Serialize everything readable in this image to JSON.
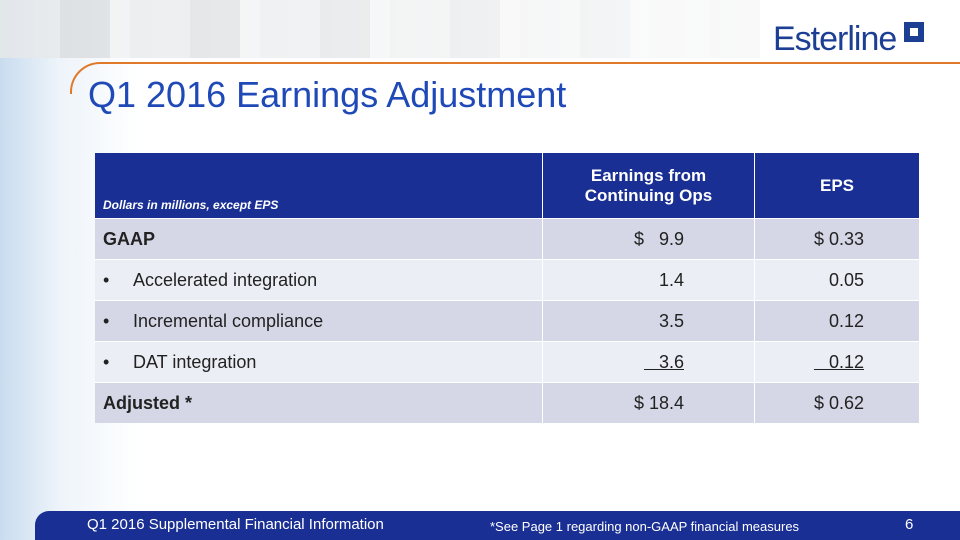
{
  "header": {
    "title": "Q1 2016 Earnings Adjustment",
    "logo": "Esterline"
  },
  "table": {
    "columns": [
      "Dollars in millions, except EPS",
      "Earnings from Continuing Ops",
      "EPS"
    ],
    "rows": [
      [
        "GAAP",
        "$   9.9",
        "$ 0.33"
      ],
      [
        "Accelerated integration",
        "1.4",
        "0.05"
      ],
      [
        "Incremental compliance",
        "3.5",
        "0.12"
      ],
      [
        "DAT integration",
        "   3.6",
        "   0.12"
      ],
      [
        "Adjusted *",
        "$ 18.4",
        "$ 0.62"
      ]
    ]
  },
  "footer": {
    "left": "Q1 2016 Supplemental Financial Information",
    "note": "*See Page 1 regarding non-GAAP financial measures",
    "page": "6"
  }
}
